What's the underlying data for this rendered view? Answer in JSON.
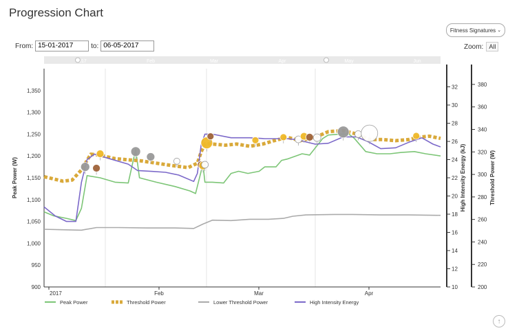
{
  "page": {
    "title": "Progression Chart"
  },
  "controls": {
    "from_label": "From:",
    "from_value": "15-01-2017",
    "to_label": "to:",
    "to_value": "06-05-2017",
    "signatures_label": "Fitness Signatures",
    "zoom_label": "Zoom:",
    "zoom_value": "All"
  },
  "chart_data": {
    "type": "line",
    "navigator_labels": [
      "2017",
      "Feb",
      "Mar",
      "Apr",
      "May",
      "Jun"
    ],
    "x_ticks": [
      "2017",
      "Feb",
      "Mar",
      "Apr"
    ],
    "axes": {
      "left": {
        "label": "Peak Power (W)",
        "min": 900,
        "max": 1400,
        "ticks": [
          900,
          950,
          1000,
          1050,
          1100,
          1150,
          1200,
          1250,
          1300,
          1350
        ]
      },
      "right1": {
        "label": "High Intensity Energy (kJ)",
        "min": 10,
        "max": 34,
        "ticks": [
          10,
          12,
          14,
          16,
          18,
          20,
          22,
          24,
          26,
          28,
          30,
          32
        ]
      },
      "right2": {
        "label": "Threshold Power (W)",
        "min": 200,
        "max": 394,
        "ticks": [
          200,
          220,
          240,
          260,
          280,
          300,
          320,
          340,
          360,
          380
        ]
      }
    },
    "grid": "vertical month lines",
    "legend_position": "bottom",
    "series": [
      {
        "name": "Peak Power",
        "color": "#7cc576",
        "axis": "left",
        "style": "solid",
        "points": [
          [
            0,
            1072
          ],
          [
            5,
            1063
          ],
          [
            12,
            1057
          ],
          [
            17,
            1052
          ],
          [
            20,
            1080
          ],
          [
            23,
            1155
          ],
          [
            30,
            1150
          ],
          [
            38,
            1140
          ],
          [
            45,
            1138
          ],
          [
            49,
            1215
          ],
          [
            51,
            1150
          ],
          [
            60,
            1140
          ],
          [
            70,
            1130
          ],
          [
            78,
            1120
          ],
          [
            81,
            1114
          ],
          [
            84,
            1165
          ],
          [
            85,
            1180
          ],
          [
            86,
            1140
          ],
          [
            90,
            1140
          ],
          [
            96,
            1138
          ],
          [
            100,
            1160
          ],
          [
            104,
            1165
          ],
          [
            109,
            1160
          ],
          [
            115,
            1165
          ],
          [
            118,
            1175
          ],
          [
            124,
            1175
          ],
          [
            127,
            1190
          ],
          [
            130,
            1193
          ],
          [
            138,
            1205
          ],
          [
            142,
            1202
          ],
          [
            149,
            1240
          ],
          [
            152,
            1248
          ],
          [
            158,
            1250
          ],
          [
            163,
            1250
          ],
          [
            166,
            1240
          ],
          [
            172,
            1210
          ],
          [
            178,
            1205
          ],
          [
            185,
            1205
          ],
          [
            191,
            1208
          ],
          [
            198,
            1210
          ],
          [
            204,
            1205
          ],
          [
            212,
            1200
          ]
        ]
      },
      {
        "name": "Threshold Power",
        "color": "#d9a93a",
        "axis": "right2",
        "style": "dashed",
        "points": [
          [
            0,
            298
          ],
          [
            5,
            296
          ],
          [
            10,
            294
          ],
          [
            15,
            295
          ],
          [
            20,
            304
          ],
          [
            25,
            318
          ],
          [
            30,
            317
          ],
          [
            38,
            314
          ],
          [
            45,
            313
          ],
          [
            52,
            312
          ],
          [
            60,
            310
          ],
          [
            68,
            308
          ],
          [
            77,
            306
          ],
          [
            82,
            310
          ],
          [
            84,
            320
          ],
          [
            86,
            327
          ],
          [
            90,
            327
          ],
          [
            97,
            326
          ],
          [
            103,
            327
          ],
          [
            110,
            325
          ],
          [
            117,
            327
          ],
          [
            123,
            330
          ],
          [
            130,
            333
          ],
          [
            137,
            330
          ],
          [
            145,
            333
          ],
          [
            152,
            338
          ],
          [
            160,
            339
          ],
          [
            167,
            336
          ],
          [
            174,
            331
          ],
          [
            181,
            331
          ],
          [
            188,
            330
          ],
          [
            195,
            331
          ],
          [
            200,
            333
          ],
          [
            206,
            334
          ],
          [
            212,
            332
          ]
        ]
      },
      {
        "name": "Lower Threshold Power",
        "color": "#aaaaaa",
        "axis": "left",
        "style": "solid",
        "points": [
          [
            0,
            1032
          ],
          [
            10,
            1031
          ],
          [
            20,
            1030
          ],
          [
            28,
            1036
          ],
          [
            40,
            1036
          ],
          [
            55,
            1035
          ],
          [
            70,
            1035
          ],
          [
            80,
            1034
          ],
          [
            85,
            1044
          ],
          [
            90,
            1053
          ],
          [
            100,
            1052
          ],
          [
            110,
            1055
          ],
          [
            120,
            1055
          ],
          [
            128,
            1057
          ],
          [
            133,
            1062
          ],
          [
            140,
            1065
          ],
          [
            155,
            1066
          ],
          [
            165,
            1066
          ],
          [
            180,
            1065
          ],
          [
            195,
            1065
          ],
          [
            212,
            1064
          ]
        ]
      },
      {
        "name": "High Intensity Energy",
        "color": "#7b68c9",
        "axis": "right1",
        "style": "solid",
        "points": [
          [
            0,
            18.8
          ],
          [
            6,
            17.8
          ],
          [
            12,
            17.2
          ],
          [
            17,
            17.2
          ],
          [
            20,
            21.5
          ],
          [
            23,
            24.0
          ],
          [
            27,
            24.6
          ],
          [
            35,
            24.1
          ],
          [
            45,
            23.5
          ],
          [
            50,
            22.8
          ],
          [
            58,
            22.7
          ],
          [
            65,
            22.6
          ],
          [
            72,
            22.3
          ],
          [
            80,
            21.6
          ],
          [
            82,
            22.5
          ],
          [
            84,
            25.6
          ],
          [
            86,
            26.8
          ],
          [
            90,
            26.8
          ],
          [
            100,
            26.4
          ],
          [
            110,
            26.4
          ],
          [
            118,
            26.3
          ],
          [
            123,
            26.3
          ],
          [
            130,
            26.3
          ],
          [
            135,
            26.2
          ],
          [
            145,
            25.7
          ],
          [
            152,
            25.8
          ],
          [
            160,
            26.5
          ],
          [
            167,
            26.5
          ],
          [
            173,
            26.0
          ],
          [
            180,
            25.2
          ],
          [
            188,
            25.3
          ],
          [
            195,
            25.9
          ],
          [
            202,
            26.4
          ],
          [
            208,
            25.7
          ],
          [
            212,
            25.4
          ]
        ]
      }
    ],
    "bubbles": [
      {
        "x": 22,
        "y": 1175,
        "r": 6.5,
        "color": "#999999"
      },
      {
        "x": 28,
        "y": 1172,
        "r": 5.5,
        "color": "#a0643a"
      },
      {
        "x": 30,
        "y": 1205,
        "r": 5.5,
        "color": "#f0b929"
      },
      {
        "x": 49,
        "y": 1210,
        "r": 7,
        "color": "#999999"
      },
      {
        "x": 57,
        "y": 1198,
        "r": 6,
        "color": "#999999"
      },
      {
        "x": 71,
        "y": 1188,
        "r": 4.5,
        "color": "#ffffff"
      },
      {
        "x": 84,
        "y": 1180,
        "r": 5.5,
        "color": "#a0643a"
      },
      {
        "x": 85,
        "y": 1178,
        "r": 6,
        "color": "#f0b929"
      },
      {
        "x": 86,
        "y": 1180,
        "r": 5,
        "color": "#ffffff"
      },
      {
        "x": 87,
        "y": 1230,
        "r": 8.5,
        "color": "#f0b929"
      },
      {
        "x": 89,
        "y": 1245,
        "r": 5,
        "color": "#a0643a"
      },
      {
        "x": 113,
        "y": 1236,
        "r": 5,
        "color": "#f0b929"
      },
      {
        "x": 128,
        "y": 1243,
        "r": 5,
        "color": "#f0b929"
      },
      {
        "x": 136,
        "y": 1238,
        "r": 5,
        "color": "#ffffff"
      },
      {
        "x": 139,
        "y": 1245,
        "r": 5.5,
        "color": "#f0b929"
      },
      {
        "x": 142,
        "y": 1243,
        "r": 5.5,
        "color": "#a0643a"
      },
      {
        "x": 146,
        "y": 1242,
        "r": 5.5,
        "color": "#ffffff"
      },
      {
        "x": 160,
        "y": 1255,
        "r": 8.5,
        "color": "#999999"
      },
      {
        "x": 168,
        "y": 1250,
        "r": 5,
        "color": "#ffffff"
      },
      {
        "x": 174,
        "y": 1252,
        "r": 12,
        "color": "#ffffff"
      },
      {
        "x": 199,
        "y": 1246,
        "r": 5,
        "color": "#f0b929"
      }
    ]
  }
}
